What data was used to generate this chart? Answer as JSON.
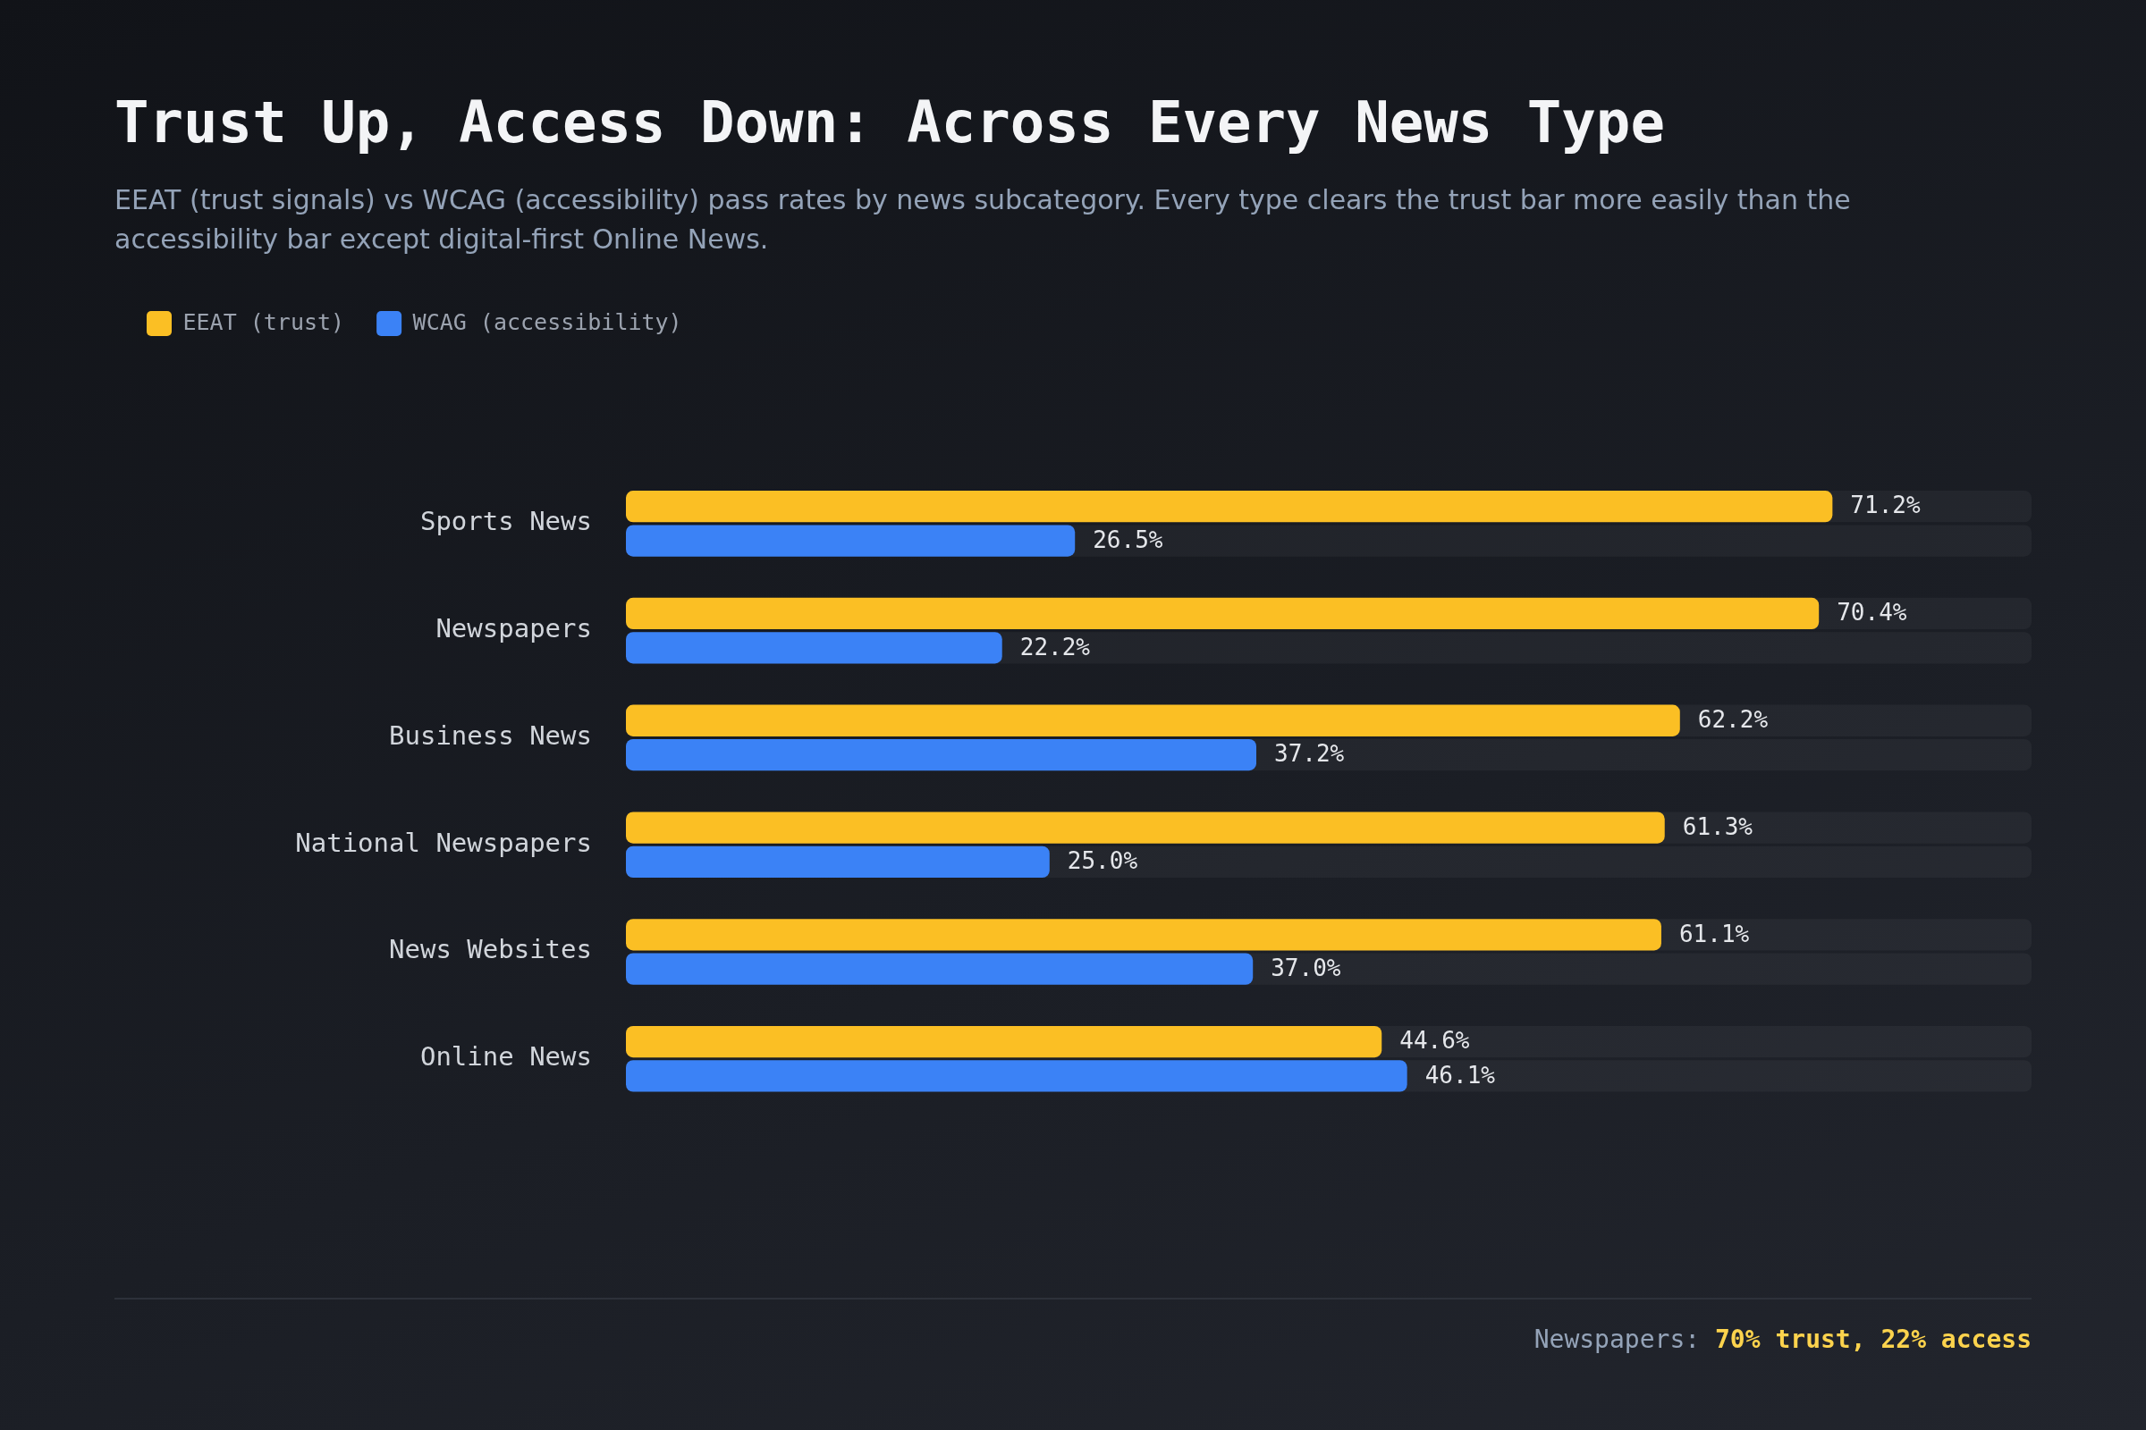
{
  "chart_data": {
    "type": "bar",
    "orientation": "horizontal",
    "title": "Trust Up, Access Down: Across Every News Type",
    "subtitle": "EEAT (trust signals) vs WCAG (accessibility) pass rates by news subcategory. Every type clears the trust bar more easily than the accessibility bar except digital-first Online News.",
    "categories": [
      "Sports News",
      "Newspapers",
      "Business News",
      "National Newspapers",
      "News Websites",
      "Online News"
    ],
    "series": [
      {
        "name": "EEAT (trust)",
        "color": "#fbbf24",
        "values": [
          71.2,
          70.4,
          62.2,
          61.3,
          61.1,
          44.6
        ],
        "value_labels": [
          "71.2%",
          "70.4%",
          "62.2%",
          "61.3%",
          "61.1%",
          "44.6%"
        ]
      },
      {
        "name": "WCAG (accessibility)",
        "color": "#3b82f6",
        "values": [
          26.5,
          22.2,
          37.2,
          25.0,
          37.0,
          46.1
        ],
        "value_labels": [
          "26.5%",
          "22.2%",
          "37.2%",
          "25.0%",
          "37.0%",
          "46.1%"
        ]
      }
    ],
    "legend": "top left",
    "annotations": [
      "Newspapers: 70% trust, 22% access"
    ]
  }
}
